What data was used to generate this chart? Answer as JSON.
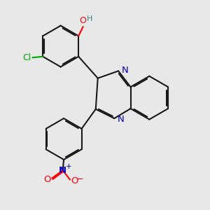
{
  "bg_color": "#e8e8e8",
  "bond_color": "#1a1a1a",
  "bond_width": 1.5,
  "dbo": 0.06,
  "N_color": "#0000cc",
  "O_color": "#ff0000",
  "Cl_color": "#00aa00",
  "H_color": "#338888",
  "figsize": [
    3.0,
    3.0
  ],
  "dpi": 100,
  "xlim": [
    0,
    10
  ],
  "ylim": [
    0,
    10
  ]
}
